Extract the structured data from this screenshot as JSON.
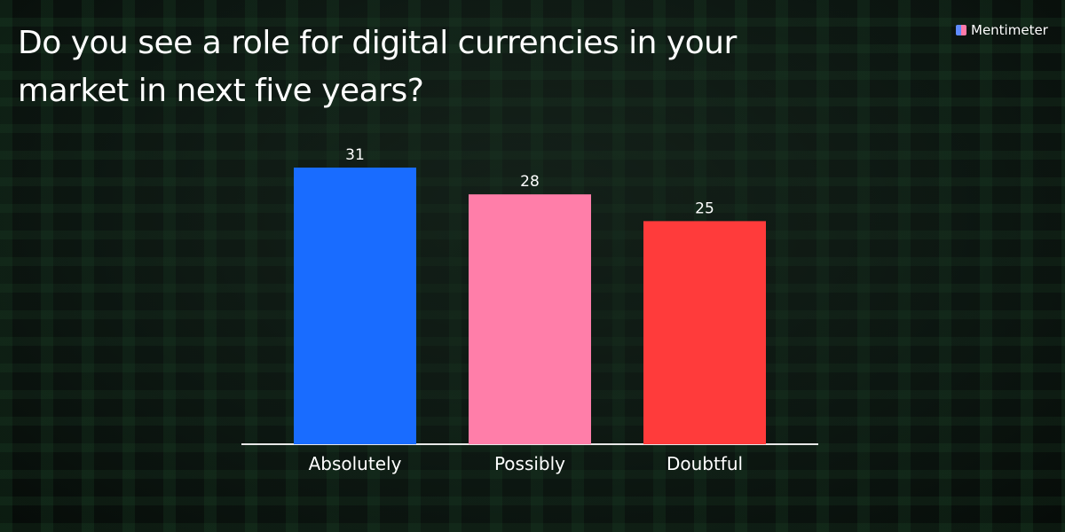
{
  "brand": "Mentimeter",
  "chart_data": {
    "type": "bar",
    "title": "Do you see a role for digital currencies in your market in next five years?",
    "categories": [
      "Absolutely",
      "Possibly",
      "Doubtful"
    ],
    "values": [
      31,
      28,
      25
    ],
    "colors": [
      "#196cff",
      "#ff7ea9",
      "#ff3b3b"
    ]
  }
}
